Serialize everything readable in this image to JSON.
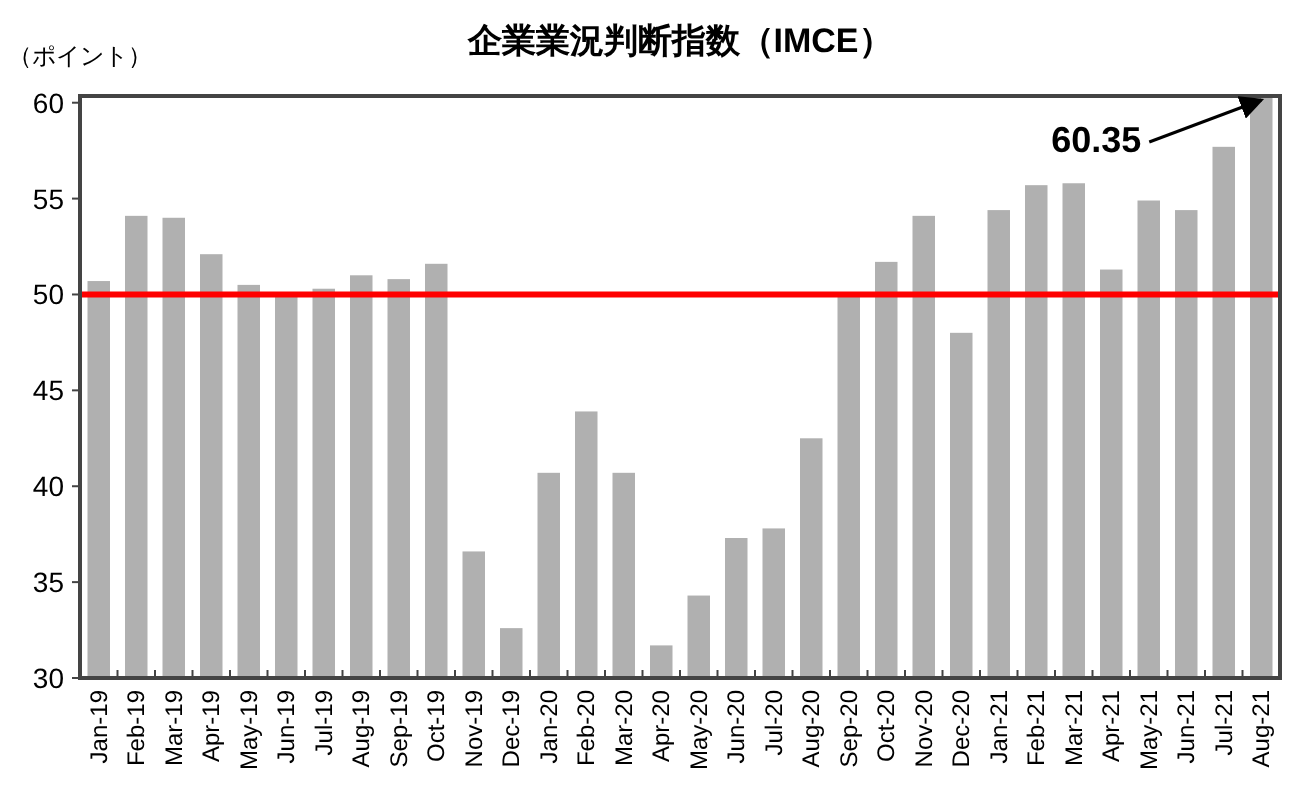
{
  "chart_data": {
    "type": "bar",
    "title": "企業業況判断指数（IMCE）",
    "ylabel": "（ポイント）",
    "categories": [
      "Jan-19",
      "Feb-19",
      "Mar-19",
      "Apr-19",
      "May-19",
      "Jun-19",
      "Jul-19",
      "Aug-19",
      "Sep-19",
      "Oct-19",
      "Nov-19",
      "Dec-19",
      "Jan-20",
      "Feb-20",
      "Mar-20",
      "Apr-20",
      "May-20",
      "Jun-20",
      "Jul-20",
      "Aug-20",
      "Sep-20",
      "Oct-20",
      "Nov-20",
      "Dec-20",
      "Jan-21",
      "Feb-21",
      "Mar-21",
      "Apr-21",
      "May-21",
      "Jun-21",
      "Jul-21",
      "Aug-21"
    ],
    "values": [
      50.7,
      54.1,
      54.0,
      52.1,
      50.5,
      49.9,
      50.3,
      51.0,
      50.8,
      51.6,
      36.6,
      32.6,
      40.7,
      43.9,
      40.7,
      31.7,
      34.3,
      37.3,
      37.8,
      42.5,
      49.9,
      51.7,
      54.1,
      48.0,
      54.4,
      55.7,
      55.8,
      51.3,
      54.9,
      54.4,
      57.7,
      60.35
    ],
    "color": "#b0b0b0",
    "ylim": [
      30,
      60.35
    ],
    "yticks": [
      30,
      35,
      40,
      45,
      50,
      55,
      60
    ],
    "ref_lines": [
      {
        "axis": "y",
        "value": 50,
        "color": "#ff0000"
      }
    ],
    "annotations": [
      {
        "text": "60.35",
        "x": "Aug-21",
        "y": 60.35
      }
    ]
  }
}
